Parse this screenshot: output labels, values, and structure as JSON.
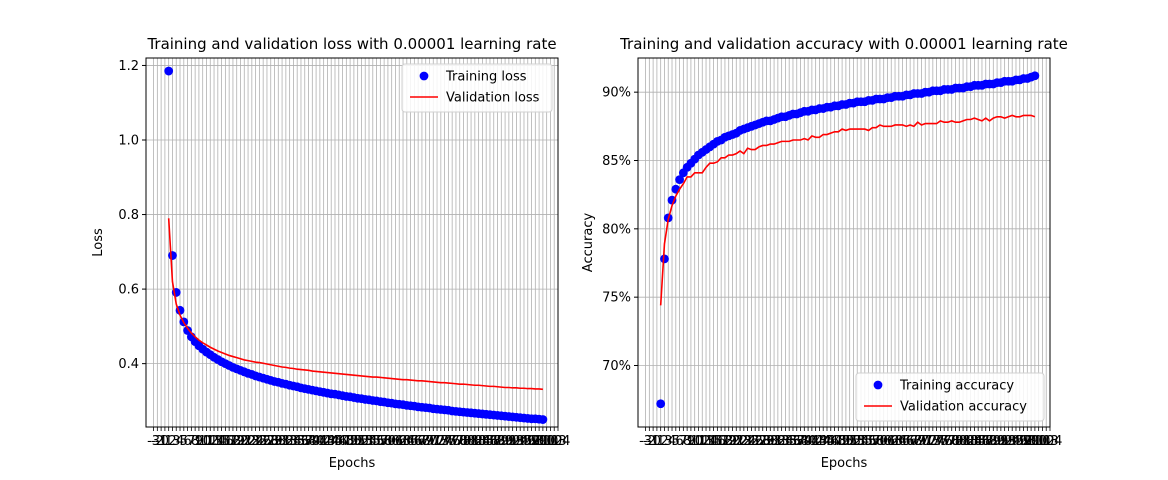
{
  "chart_data": [
    {
      "type": "line",
      "title": "Training and validation loss with 0.00001 learning rate",
      "xlabel": "Epochs",
      "ylabel": "Loss",
      "xlim": [
        -5,
        104
      ],
      "ylim": [
        0.23,
        1.22
      ],
      "y_ticks": [
        0.4,
        0.6,
        0.8,
        1.0,
        1.2
      ],
      "y_tick_labels": [
        "0.4",
        "0.6",
        "0.8",
        "1.0",
        "1.2"
      ],
      "x_tick_labels_note": "dense integer ticks from -3 to 104, overlapping",
      "grid": true,
      "legend_position": "upper right",
      "series": [
        {
          "name": "Training loss",
          "style": "points",
          "color": "#0000ff",
          "x": [
            1,
            2,
            3,
            4,
            5,
            6,
            7,
            8,
            9,
            10,
            11,
            12,
            13,
            14,
            15,
            16,
            17,
            18,
            19,
            20,
            21,
            22,
            23,
            24,
            25,
            26,
            27,
            28,
            29,
            30,
            31,
            32,
            33,
            34,
            35,
            36,
            37,
            38,
            39,
            40,
            41,
            42,
            43,
            44,
            45,
            46,
            47,
            48,
            49,
            50,
            51,
            52,
            53,
            54,
            55,
            56,
            57,
            58,
            59,
            60,
            61,
            62,
            63,
            64,
            65,
            66,
            67,
            68,
            69,
            70,
            71,
            72,
            73,
            74,
            75,
            76,
            77,
            78,
            79,
            80,
            81,
            82,
            83,
            84,
            85,
            86,
            87,
            88,
            89,
            90,
            91,
            92,
            93,
            94,
            95,
            96,
            97,
            98,
            99,
            100
          ],
          "y": [
            1.185,
            0.69,
            0.591,
            0.543,
            0.512,
            0.489,
            0.472,
            0.459,
            0.448,
            0.439,
            0.431,
            0.424,
            0.417,
            0.411,
            0.405,
            0.4,
            0.395,
            0.39,
            0.386,
            0.382,
            0.378,
            0.374,
            0.371,
            0.367,
            0.364,
            0.361,
            0.358,
            0.355,
            0.352,
            0.35,
            0.347,
            0.345,
            0.342,
            0.34,
            0.338,
            0.335,
            0.333,
            0.331,
            0.329,
            0.327,
            0.325,
            0.323,
            0.321,
            0.319,
            0.318,
            0.316,
            0.314,
            0.312,
            0.311,
            0.309,
            0.307,
            0.306,
            0.304,
            0.303,
            0.301,
            0.3,
            0.298,
            0.297,
            0.295,
            0.294,
            0.292,
            0.291,
            0.29,
            0.288,
            0.287,
            0.286,
            0.284,
            0.283,
            0.282,
            0.281,
            0.279,
            0.278,
            0.277,
            0.276,
            0.275,
            0.273,
            0.272,
            0.271,
            0.27,
            0.269,
            0.268,
            0.267,
            0.266,
            0.265,
            0.264,
            0.263,
            0.262,
            0.261,
            0.26,
            0.259,
            0.258,
            0.257,
            0.256,
            0.255,
            0.254,
            0.253,
            0.252,
            0.252,
            0.251,
            0.25
          ]
        },
        {
          "name": "Validation loss",
          "style": "line",
          "color": "#ff0000",
          "x": [
            1,
            2,
            3,
            4,
            5,
            6,
            7,
            8,
            9,
            10,
            11,
            12,
            13,
            14,
            15,
            16,
            17,
            18,
            19,
            20,
            21,
            22,
            23,
            24,
            25,
            26,
            27,
            28,
            29,
            30,
            31,
            32,
            33,
            34,
            35,
            36,
            37,
            38,
            39,
            40,
            41,
            42,
            43,
            44,
            45,
            46,
            47,
            48,
            49,
            50,
            51,
            52,
            53,
            54,
            55,
            56,
            57,
            58,
            59,
            60,
            61,
            62,
            63,
            64,
            65,
            66,
            67,
            68,
            69,
            70,
            71,
            72,
            73,
            74,
            75,
            76,
            77,
            78,
            79,
            80,
            81,
            82,
            83,
            84,
            85,
            86,
            87,
            88,
            89,
            90,
            91,
            92,
            93,
            94,
            95,
            96,
            97,
            98,
            99,
            100
          ],
          "y": [
            0.79,
            0.62,
            0.56,
            0.53,
            0.51,
            0.495,
            0.482,
            0.472,
            0.463,
            0.456,
            0.45,
            0.444,
            0.439,
            0.434,
            0.43,
            0.426,
            0.422,
            0.419,
            0.416,
            0.413,
            0.41,
            0.408,
            0.406,
            0.404,
            0.403,
            0.401,
            0.399,
            0.397,
            0.395,
            0.393,
            0.391,
            0.39,
            0.388,
            0.387,
            0.385,
            0.384,
            0.383,
            0.382,
            0.38,
            0.379,
            0.378,
            0.377,
            0.376,
            0.375,
            0.374,
            0.373,
            0.372,
            0.371,
            0.37,
            0.369,
            0.368,
            0.367,
            0.366,
            0.365,
            0.364,
            0.364,
            0.363,
            0.362,
            0.361,
            0.36,
            0.359,
            0.358,
            0.357,
            0.357,
            0.356,
            0.355,
            0.354,
            0.354,
            0.353,
            0.352,
            0.351,
            0.35,
            0.349,
            0.349,
            0.348,
            0.347,
            0.346,
            0.345,
            0.345,
            0.344,
            0.343,
            0.342,
            0.342,
            0.341,
            0.34,
            0.339,
            0.339,
            0.338,
            0.337,
            0.336,
            0.336,
            0.335,
            0.335,
            0.334,
            0.334,
            0.333,
            0.333,
            0.332,
            0.332,
            0.331
          ]
        }
      ]
    },
    {
      "type": "line",
      "title": "Training and validation accuracy with 0.00001 learning rate",
      "xlabel": "Epochs",
      "ylabel": "Accuracy",
      "xlim": [
        -5,
        104
      ],
      "ylim": [
        0.655,
        0.925
      ],
      "y_ticks": [
        0.7,
        0.75,
        0.8,
        0.85,
        0.9
      ],
      "y_tick_labels": [
        "70%",
        "75%",
        "80%",
        "85%",
        "90%"
      ],
      "x_tick_labels_note": "dense integer ticks from -3 to 104, overlapping",
      "grid": true,
      "legend_position": "lower right",
      "series": [
        {
          "name": "Training accuracy",
          "style": "points",
          "color": "#0000ff",
          "x": [
            1,
            2,
            3,
            4,
            5,
            6,
            7,
            8,
            9,
            10,
            11,
            12,
            13,
            14,
            15,
            16,
            17,
            18,
            19,
            20,
            21,
            22,
            23,
            24,
            25,
            26,
            27,
            28,
            29,
            30,
            31,
            32,
            33,
            34,
            35,
            36,
            37,
            38,
            39,
            40,
            41,
            42,
            43,
            44,
            45,
            46,
            47,
            48,
            49,
            50,
            51,
            52,
            53,
            54,
            55,
            56,
            57,
            58,
            59,
            60,
            61,
            62,
            63,
            64,
            65,
            66,
            67,
            68,
            69,
            70,
            71,
            72,
            73,
            74,
            75,
            76,
            77,
            78,
            79,
            80,
            81,
            82,
            83,
            84,
            85,
            86,
            87,
            88,
            89,
            90,
            91,
            92,
            93,
            94,
            95,
            96,
            97,
            98,
            99,
            100
          ],
          "y": [
            0.672,
            0.778,
            0.808,
            0.821,
            0.829,
            0.836,
            0.841,
            0.845,
            0.848,
            0.851,
            0.854,
            0.856,
            0.858,
            0.86,
            0.862,
            0.864,
            0.865,
            0.867,
            0.868,
            0.869,
            0.87,
            0.872,
            0.873,
            0.874,
            0.875,
            0.876,
            0.877,
            0.878,
            0.879,
            0.879,
            0.88,
            0.881,
            0.882,
            0.882,
            0.883,
            0.884,
            0.884,
            0.885,
            0.886,
            0.886,
            0.887,
            0.887,
            0.888,
            0.888,
            0.889,
            0.889,
            0.89,
            0.89,
            0.891,
            0.891,
            0.892,
            0.892,
            0.893,
            0.893,
            0.893,
            0.894,
            0.894,
            0.895,
            0.895,
            0.895,
            0.896,
            0.896,
            0.897,
            0.897,
            0.897,
            0.898,
            0.898,
            0.899,
            0.899,
            0.899,
            0.9,
            0.9,
            0.901,
            0.901,
            0.901,
            0.902,
            0.902,
            0.902,
            0.903,
            0.903,
            0.903,
            0.904,
            0.904,
            0.905,
            0.905,
            0.905,
            0.906,
            0.906,
            0.906,
            0.907,
            0.907,
            0.908,
            0.908,
            0.908,
            0.909,
            0.909,
            0.91,
            0.91,
            0.911,
            0.912
          ]
        },
        {
          "name": "Validation accuracy",
          "style": "line",
          "color": "#ff0000",
          "x": [
            1,
            2,
            3,
            4,
            5,
            6,
            7,
            8,
            9,
            10,
            11,
            12,
            13,
            14,
            15,
            16,
            17,
            18,
            19,
            20,
            21,
            22,
            23,
            24,
            25,
            26,
            27,
            28,
            29,
            30,
            31,
            32,
            33,
            34,
            35,
            36,
            37,
            38,
            39,
            40,
            41,
            42,
            43,
            44,
            45,
            46,
            47,
            48,
            49,
            50,
            51,
            52,
            53,
            54,
            55,
            56,
            57,
            58,
            59,
            60,
            61,
            62,
            63,
            64,
            65,
            66,
            67,
            68,
            69,
            70,
            71,
            72,
            73,
            74,
            75,
            76,
            77,
            78,
            79,
            80,
            81,
            82,
            83,
            84,
            85,
            86,
            87,
            88,
            89,
            90,
            91,
            92,
            93,
            94,
            95,
            96,
            97,
            98,
            99,
            100
          ],
          "y": [
            0.744,
            0.789,
            0.807,
            0.817,
            0.824,
            0.829,
            0.833,
            0.838,
            0.838,
            0.841,
            0.841,
            0.841,
            0.845,
            0.848,
            0.848,
            0.849,
            0.852,
            0.852,
            0.854,
            0.854,
            0.855,
            0.857,
            0.855,
            0.859,
            0.858,
            0.858,
            0.86,
            0.861,
            0.861,
            0.862,
            0.862,
            0.863,
            0.864,
            0.864,
            0.864,
            0.865,
            0.865,
            0.865,
            0.866,
            0.865,
            0.868,
            0.867,
            0.867,
            0.869,
            0.869,
            0.87,
            0.871,
            0.871,
            0.873,
            0.872,
            0.873,
            0.873,
            0.873,
            0.873,
            0.873,
            0.872,
            0.874,
            0.874,
            0.876,
            0.875,
            0.875,
            0.875,
            0.876,
            0.876,
            0.876,
            0.875,
            0.876,
            0.875,
            0.878,
            0.876,
            0.877,
            0.877,
            0.877,
            0.877,
            0.879,
            0.878,
            0.878,
            0.879,
            0.878,
            0.878,
            0.879,
            0.88,
            0.88,
            0.881,
            0.88,
            0.879,
            0.881,
            0.879,
            0.881,
            0.882,
            0.882,
            0.881,
            0.882,
            0.883,
            0.882,
            0.882,
            0.883,
            0.883,
            0.883,
            0.882
          ]
        }
      ]
    }
  ]
}
